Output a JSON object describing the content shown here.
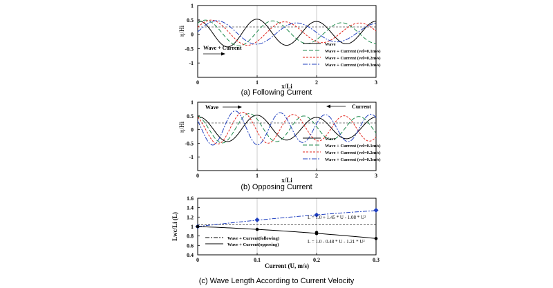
{
  "colors": {
    "wave": "#000000",
    "c01": "#1f8a4c",
    "c02": "#e2231a",
    "c03": "#1f3fbf"
  },
  "chart_data": [
    {
      "type": "line",
      "caption": "(a) Following Current",
      "xlabel": "x/Li",
      "ylabel": "η/Hi",
      "xlim": [
        0,
        3
      ],
      "ylim": [
        -1.5,
        1
      ],
      "x_ticks": [
        "0",
        "1",
        "2",
        "3"
      ],
      "y_ticks": [
        "1",
        "0.5",
        "0",
        "-0.5",
        "-1"
      ],
      "annotations": [
        {
          "text": "Wave + Current",
          "arrow": "right"
        }
      ],
      "legend_position": "bottom-right",
      "series": [
        {
          "name": "Wave",
          "wavelength": 1.0,
          "amplitude": 0.55,
          "phase": 0.0,
          "decay": 0.25
        },
        {
          "name": "Wave + Current (vel=0.1m/s)",
          "wavelength": 1.15,
          "amplitude": 0.5,
          "phase": 0.12,
          "decay": 0.15
        },
        {
          "name": "Wave + Current (vel=0.2m/s)",
          "wavelength": 1.25,
          "amplitude": 0.48,
          "phase": 0.22,
          "decay": 0.12
        },
        {
          "name": "Wave + Current (vel=0.3m/s)",
          "wavelength": 1.35,
          "amplitude": 0.45,
          "phase": 0.32,
          "decay": 0.1
        }
      ]
    },
    {
      "type": "line",
      "caption": "(b) Opposing Current",
      "xlabel": "x/Li",
      "ylabel": "η/Hi",
      "xlim": [
        0,
        3
      ],
      "ylim": [
        -1.5,
        1
      ],
      "x_ticks": [
        "0",
        "1",
        "2",
        "3"
      ],
      "y_ticks": [
        "1",
        "0.5",
        "0",
        "-0.5",
        "-1"
      ],
      "annotations": [
        {
          "text": "Wave",
          "arrow": "right"
        },
        {
          "text": "Current",
          "arrow": "left"
        }
      ],
      "legend_position": "bottom-right",
      "series": [
        {
          "name": "Wave",
          "wavelength": 1.0,
          "amplitude": 0.55,
          "phase": 0.0,
          "decay": 0.25
        },
        {
          "name": "Wave + Current (vel=0.1m/s)",
          "wavelength": 0.92,
          "amplitude": 0.6,
          "phase": -0.05,
          "decay": 0.2
        },
        {
          "name": "Wave + Current (vel=0.2m/s)",
          "wavelength": 0.85,
          "amplitude": 0.65,
          "phase": -0.09,
          "decay": 0.2
        },
        {
          "name": "Wave + Current (vel=0.3m/s)",
          "wavelength": 0.76,
          "amplitude": 0.7,
          "phase": -0.13,
          "decay": 0.2
        }
      ]
    },
    {
      "type": "line",
      "caption": "(c) Wave Length According to Current Velocity",
      "xlabel": "Current (U, m/s)",
      "ylabel": "Lwc/Li (L)",
      "xlim": [
        0,
        0.3
      ],
      "ylim": [
        0.4,
        1.6
      ],
      "x_ticks": [
        "0",
        "0.1",
        "0.2",
        "0.3"
      ],
      "y_ticks": [
        "1.6",
        "1.4",
        "1.2",
        "1",
        "0.8",
        "0.6",
        "0.4"
      ],
      "equations": [
        "L = 1.0 + 1.45 * U - 1.08 * U²",
        "L = 1.0 - 0.48 * U - 1.21 * U²"
      ],
      "legend_position": "bottom-left",
      "series": [
        {
          "name": "Wave + Current(following)",
          "x": [
            0,
            0.1,
            0.2,
            0.3
          ],
          "values": [
            1.0,
            1.14,
            1.245,
            1.345
          ],
          "fit": [
            1.0,
            1.45,
            -1.08
          ]
        },
        {
          "name": "Wave + Current(opposing)",
          "x": [
            0,
            0.1,
            0.2,
            0.2,
            0.3
          ],
          "values": [
            1.0,
            0.94,
            0.875,
            0.85,
            0.745
          ],
          "fit": [
            1.0,
            -0.48,
            -1.21
          ]
        }
      ]
    }
  ]
}
